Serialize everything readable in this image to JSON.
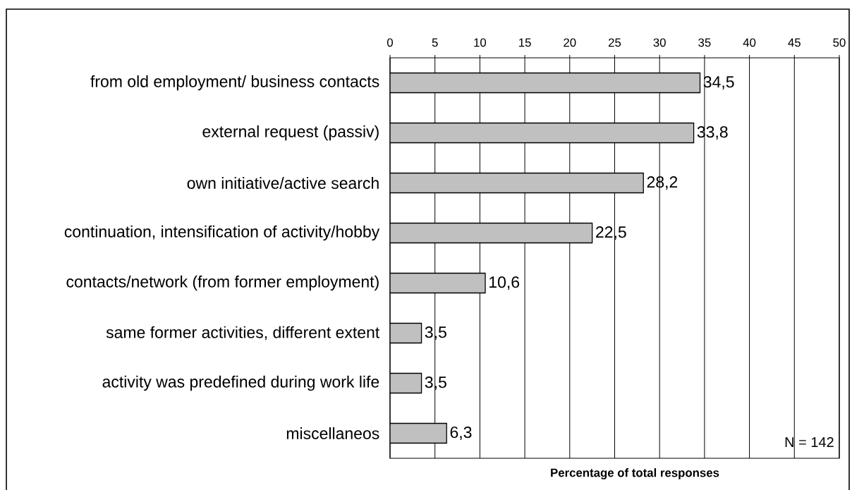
{
  "chart_data": {
    "type": "bar",
    "orientation": "horizontal",
    "categories": [
      "from old employment/ business contacts",
      "external request (passiv)",
      "own initiative/active search",
      "continuation, intensification of activity/hobby",
      "contacts/network (from former employment)",
      "same former activities, different extent",
      "activity was predefined during work life",
      "miscellaneos"
    ],
    "values": [
      34.5,
      33.8,
      28.2,
      22.5,
      10.6,
      3.5,
      3.5,
      6.3
    ],
    "value_labels": [
      "34,5",
      "33,8",
      "28,2",
      "22,5",
      "10,6",
      "3,5",
      "3,5",
      "6,3"
    ],
    "color": "#c0c0c0",
    "xlim": [
      0,
      50
    ],
    "xticks": [
      0,
      5,
      10,
      15,
      20,
      25,
      30,
      35,
      40,
      45,
      50
    ],
    "xlabel": "Percentage of total responses",
    "annotations": [
      "N = 142"
    ],
    "grid": "x"
  }
}
